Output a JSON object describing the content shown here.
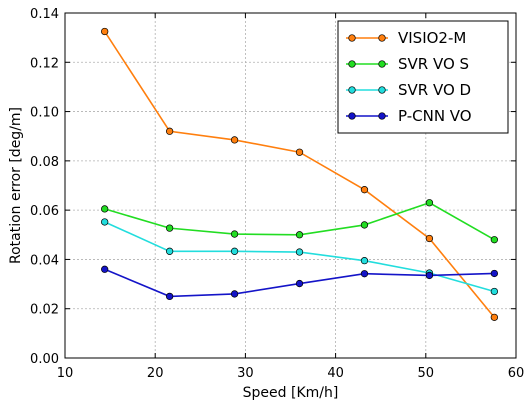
{
  "chart_data": {
    "type": "line",
    "xlabel": "Speed [Km/h]",
    "ylabel": "Rotation error [deg/m]",
    "xlim": [
      10,
      60
    ],
    "ylim": [
      0.0,
      0.14
    ],
    "xticks": [
      10,
      20,
      30,
      40,
      50,
      60
    ],
    "yticks": [
      0.0,
      0.02,
      0.04,
      0.06,
      0.08,
      0.1,
      0.12,
      0.14
    ],
    "ytick_labels": [
      "0.00",
      "0.02",
      "0.04",
      "0.06",
      "0.08",
      "0.10",
      "0.12",
      "0.14"
    ],
    "grid": true,
    "legend_position": "top-right",
    "x": [
      14.4,
      21.6,
      28.8,
      36.0,
      43.2,
      50.4,
      57.6
    ],
    "series": [
      {
        "name": "VISIO2-M",
        "color": "#ff7f0e",
        "values": [
          0.1325,
          0.092,
          0.0885,
          0.0835,
          0.0683,
          0.0485,
          0.0165
        ]
      },
      {
        "name": "SVR VO S",
        "color": "#22dd22",
        "values": [
          0.0605,
          0.0527,
          0.0503,
          0.05,
          0.054,
          0.063,
          0.048
        ]
      },
      {
        "name": "SVR VO D",
        "color": "#22dddd",
        "values": [
          0.0552,
          0.0433,
          0.0433,
          0.043,
          0.0395,
          0.0345,
          0.027
        ]
      },
      {
        "name": "P-CNN VO",
        "color": "#1414c8",
        "values": [
          0.036,
          0.025,
          0.026,
          0.0302,
          0.0342,
          0.0335,
          0.0343
        ]
      }
    ]
  }
}
